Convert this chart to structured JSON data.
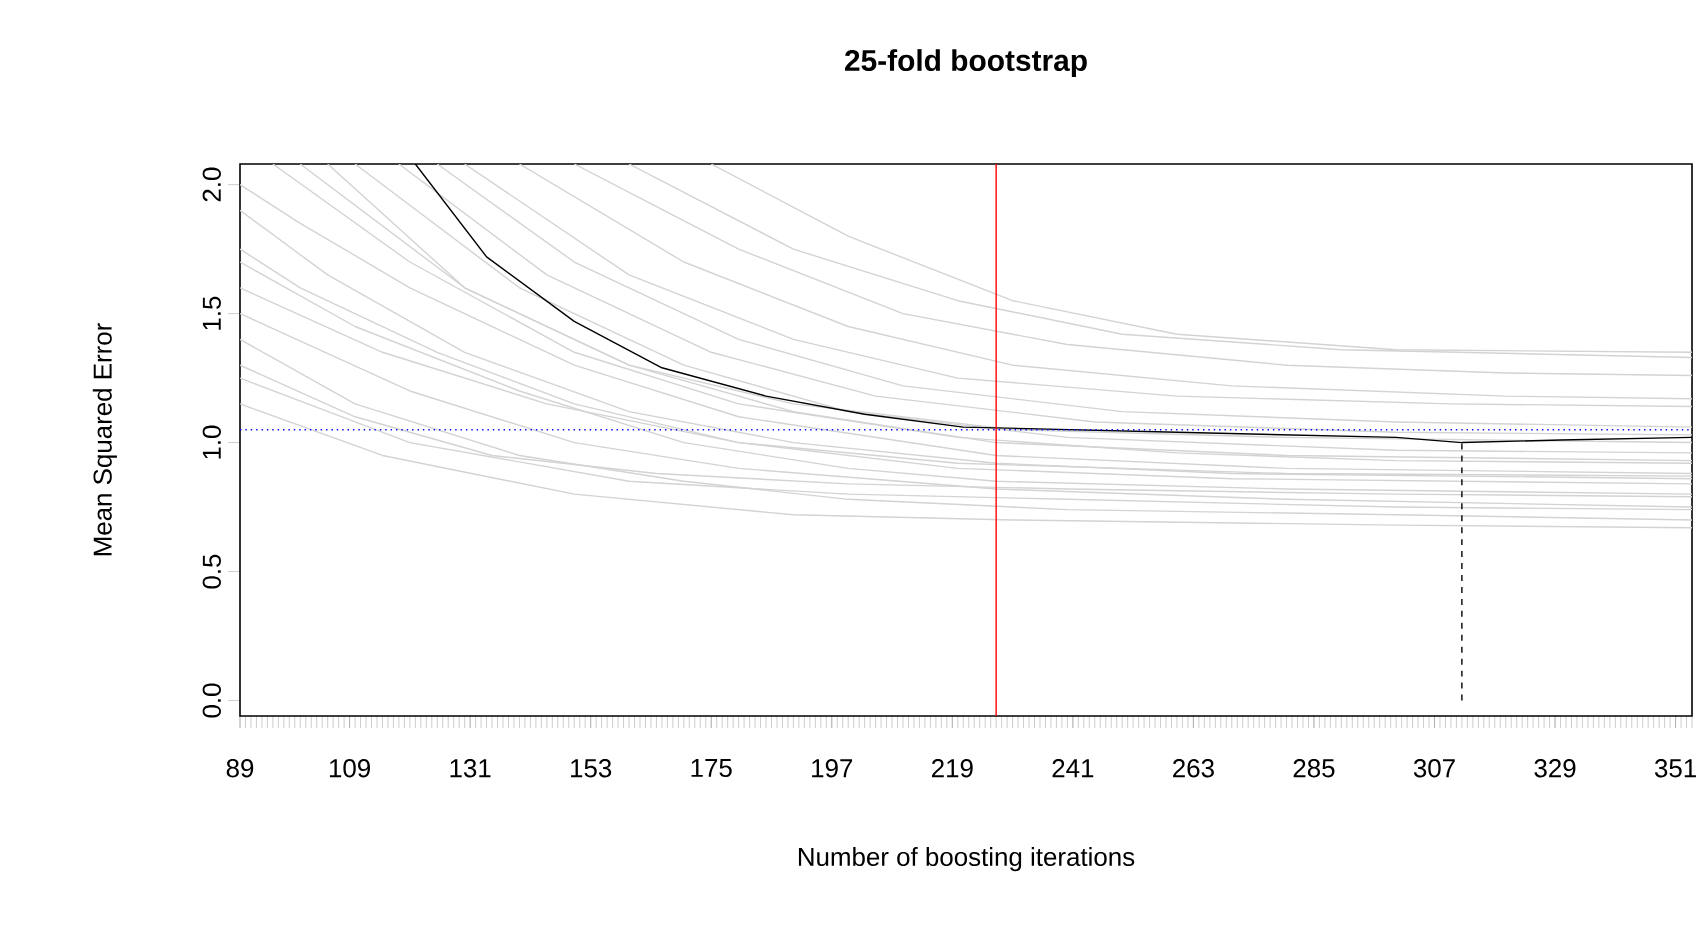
{
  "chart_data": {
    "type": "line",
    "title": "25-fold bootstrap",
    "xlabel": "Number of boosting iterations",
    "ylabel": "Mean Squared Error",
    "xlim": [
      89,
      354
    ],
    "ylim": [
      -0.06,
      2.08
    ],
    "xticks": [
      89,
      109,
      131,
      153,
      175,
      197,
      219,
      241,
      263,
      285,
      307,
      329,
      351
    ],
    "yticks": [
      {
        "value": 0,
        "label": "0.0"
      },
      {
        "value": 0.5,
        "label": "0.5"
      },
      {
        "value": 1,
        "label": "1.0"
      },
      {
        "value": 1.5,
        "label": "1.5"
      },
      {
        "value": 2,
        "label": "2.0"
      }
    ],
    "grid": false,
    "marker": "none",
    "ref_lines": [
      {
        "axis": "x",
        "value": 227,
        "color": "#ff0000",
        "line_style": "solid"
      },
      {
        "axis": "y",
        "value": 1.05,
        "color": "#0000ff",
        "line_style": "dotted"
      }
    ],
    "series": [
      {
        "color": "#d3d3d3",
        "x": [
          89,
          100,
          120,
          150,
          180,
          227,
          280,
          354
        ],
        "values": [
          2.0,
          1.85,
          1.6,
          1.3,
          1.1,
          0.95,
          0.9,
          0.88
        ]
      },
      {
        "color": "#d3d3d3",
        "x": [
          89,
          110,
          140,
          170,
          200,
          227,
          280,
          354
        ],
        "values": [
          1.7,
          1.45,
          1.2,
          1.0,
          0.9,
          0.85,
          0.82,
          0.8
        ]
      },
      {
        "color": "#d3d3d3",
        "x": [
          89,
          120,
          150,
          180,
          227,
          280,
          354
        ],
        "values": [
          1.5,
          1.2,
          1.0,
          0.9,
          0.82,
          0.78,
          0.75
        ]
      },
      {
        "color": "#d3d3d3",
        "x": [
          89,
          110,
          140,
          170,
          200,
          240,
          300,
          354
        ],
        "values": [
          1.4,
          1.15,
          0.95,
          0.85,
          0.78,
          0.74,
          0.72,
          0.7
        ]
      },
      {
        "color": "#d3d3d3",
        "x": [
          89,
          120,
          160,
          200,
          240,
          300,
          354
        ],
        "values": [
          1.25,
          1.0,
          0.85,
          0.8,
          0.78,
          0.75,
          0.74
        ]
      },
      {
        "color": "#d3d3d3",
        "x": [
          89,
          115,
          150,
          190,
          230,
          300,
          354
        ],
        "values": [
          1.15,
          0.95,
          0.8,
          0.72,
          0.7,
          0.68,
          0.67
        ]
      },
      {
        "color": "#d3d3d3",
        "x": [
          95,
          120,
          150,
          180,
          220,
          260,
          300,
          354
        ],
        "values": [
          2.08,
          1.7,
          1.35,
          1.15,
          1.02,
          0.96,
          0.93,
          0.92
        ]
      },
      {
        "color": "#d3d3d3",
        "x": [
          100,
          130,
          160,
          190,
          227,
          280,
          354
        ],
        "values": [
          2.08,
          1.6,
          1.3,
          1.12,
          1.0,
          0.95,
          0.93
        ]
      },
      {
        "color": "#d3d3d3",
        "x": [
          110,
          140,
          170,
          200,
          240,
          300,
          354
        ],
        "values": [
          2.08,
          1.6,
          1.3,
          1.12,
          1.02,
          0.97,
          0.96
        ]
      },
      {
        "color": "#d3d3d3",
        "x": [
          125,
          150,
          180,
          210,
          250,
          300,
          354
        ],
        "values": [
          2.08,
          1.7,
          1.4,
          1.22,
          1.12,
          1.08,
          1.06
        ]
      },
      {
        "color": "#d3d3d3",
        "x": [
          140,
          170,
          200,
          230,
          270,
          320,
          354
        ],
        "values": [
          2.08,
          1.7,
          1.45,
          1.3,
          1.22,
          1.18,
          1.17
        ]
      },
      {
        "color": "#d3d3d3",
        "x": [
          150,
          180,
          210,
          240,
          280,
          320,
          354
        ],
        "values": [
          2.08,
          1.75,
          1.5,
          1.38,
          1.3,
          1.27,
          1.26
        ]
      },
      {
        "color": "#d3d3d3",
        "x": [
          160,
          190,
          220,
          250,
          290,
          354
        ],
        "values": [
          2.08,
          1.75,
          1.55,
          1.42,
          1.36,
          1.33
        ]
      },
      {
        "color": "#d3d3d3",
        "x": [
          175,
          200,
          230,
          260,
          300,
          354
        ],
        "values": [
          2.08,
          1.8,
          1.55,
          1.42,
          1.36,
          1.35
        ]
      },
      {
        "color": "#d3d3d3",
        "x": [
          89,
          105,
          130,
          160,
          190,
          227,
          270,
          354
        ],
        "values": [
          1.9,
          1.65,
          1.35,
          1.12,
          1.0,
          0.92,
          0.88,
          0.86
        ]
      },
      {
        "color": "#d3d3d3",
        "x": [
          89,
          100,
          125,
          150,
          180,
          220,
          270,
          354
        ],
        "values": [
          1.75,
          1.6,
          1.35,
          1.15,
          1.0,
          0.9,
          0.86,
          0.84
        ]
      },
      {
        "color": "#d3d3d3",
        "x": [
          89,
          115,
          145,
          180,
          220,
          280,
          354
        ],
        "values": [
          1.6,
          1.35,
          1.15,
          1.0,
          0.92,
          0.88,
          0.87
        ]
      },
      {
        "color": "#d3d3d3",
        "x": [
          105,
          130,
          160,
          190,
          230,
          280,
          354
        ],
        "values": [
          2.08,
          1.6,
          1.3,
          1.15,
          1.05,
          1.02,
          1.0
        ]
      },
      {
        "color": "#d3d3d3",
        "x": [
          130,
          160,
          190,
          220,
          260,
          310,
          354
        ],
        "values": [
          2.08,
          1.65,
          1.4,
          1.25,
          1.18,
          1.15,
          1.14
        ]
      },
      {
        "color": "#d3d3d3",
        "x": [
          118,
          145,
          175,
          205,
          245,
          300,
          354
        ],
        "values": [
          2.08,
          1.65,
          1.35,
          1.18,
          1.08,
          1.04,
          1.03
        ]
      },
      {
        "color": "#d3d3d3",
        "x": [
          89,
          110,
          135,
          165,
          200,
          240,
          300,
          354
        ],
        "values": [
          1.3,
          1.1,
          0.95,
          0.88,
          0.84,
          0.82,
          0.8,
          0.79
        ]
      },
      {
        "color": "#000000",
        "x": [
          121,
          134,
          150,
          166,
          185,
          203,
          221,
          260,
          300,
          312,
          330,
          354
        ],
        "values": [
          2.08,
          1.72,
          1.47,
          1.29,
          1.18,
          1.11,
          1.06,
          1.04,
          1.02,
          1.0,
          1.01,
          1.02
        ]
      },
      {
        "color": "#000000",
        "line_style": "dashed",
        "x": [
          312,
          312
        ],
        "values": [
          0,
          1.0
        ]
      }
    ]
  }
}
